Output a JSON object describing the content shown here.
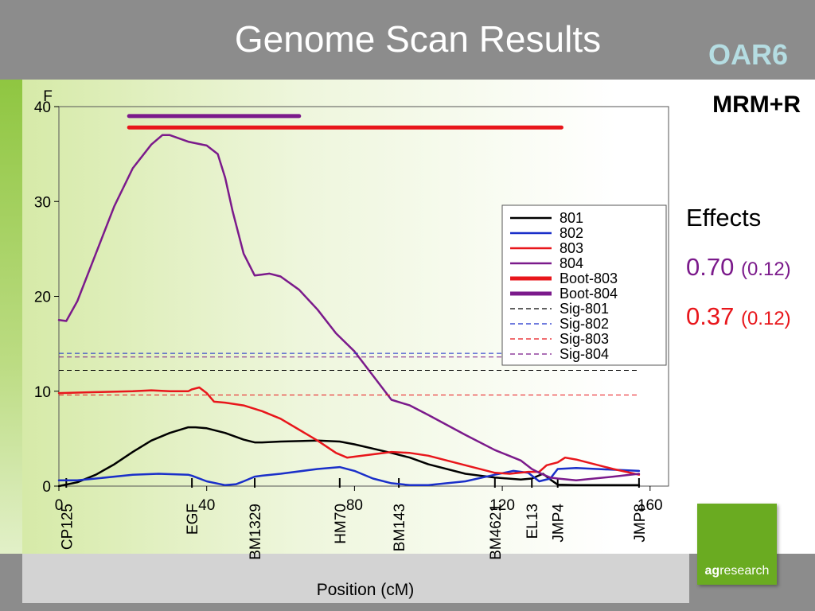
{
  "header": {
    "title": "Genome Scan Results",
    "chromosome": "OAR6"
  },
  "model_label": "MRM+R",
  "effects": {
    "title": "Effects",
    "items": [
      {
        "value": "0.70",
        "se": "(0.12)",
        "color": "#7b1a8b"
      },
      {
        "value": "0.37",
        "se": "(0.12)",
        "color": "#e8161b"
      }
    ]
  },
  "logo": {
    "bold": "ag",
    "rest": "research"
  },
  "chart_data": {
    "type": "line",
    "ylabel": "F",
    "xlabel": "Position (cM)",
    "xlim": [
      0,
      165
    ],
    "ylim": [
      0,
      40
    ],
    "xticks": [
      0,
      40,
      80,
      120,
      160
    ],
    "yticks": [
      0,
      10,
      20,
      30,
      40
    ],
    "grid": false,
    "legend_position": "right",
    "markers": [
      {
        "label": "CP125",
        "x": 2
      },
      {
        "label": "EGF",
        "x": 36
      },
      {
        "label": "BM1329",
        "x": 53
      },
      {
        "label": "HM70",
        "x": 76
      },
      {
        "label": "BM143",
        "x": 92
      },
      {
        "label": "BM4621",
        "x": 118
      },
      {
        "label": "EL13",
        "x": 128
      },
      {
        "label": "JMP4",
        "x": 135
      },
      {
        "label": "JMP8",
        "x": 157
      }
    ],
    "series": [
      {
        "name": "801",
        "color": "#000000",
        "style": "solid",
        "width": 2.5,
        "x": [
          0,
          5,
          10,
          15,
          20,
          25,
          30,
          35,
          37,
          40,
          45,
          50,
          53,
          55,
          60,
          70,
          76,
          80,
          90,
          95,
          100,
          110,
          118,
          125,
          128,
          131,
          133,
          135,
          140,
          150,
          157
        ],
        "y": [
          0,
          0.4,
          1.2,
          2.3,
          3.6,
          4.8,
          5.6,
          6.2,
          6.2,
          6.1,
          5.6,
          4.9,
          4.6,
          4.6,
          4.7,
          4.8,
          4.7,
          4.4,
          3.5,
          3.0,
          2.3,
          1.3,
          0.9,
          0.7,
          0.8,
          1.3,
          0.7,
          0.15,
          0.1,
          0.1,
          0.1
        ]
      },
      {
        "name": "802",
        "color": "#1a2fc9",
        "style": "solid",
        "width": 2.5,
        "x": [
          0,
          5,
          10,
          20,
          27,
          35,
          36,
          40,
          45,
          48,
          50,
          53,
          55,
          60,
          70,
          76,
          80,
          85,
          90,
          95,
          100,
          110,
          118,
          123,
          127,
          130,
          133,
          135,
          140,
          157
        ],
        "y": [
          0.6,
          0.6,
          0.8,
          1.2,
          1.3,
          1.2,
          1.1,
          0.5,
          0.1,
          0.2,
          0.5,
          1.0,
          1.1,
          1.3,
          1.8,
          2.0,
          1.6,
          0.8,
          0.3,
          0.1,
          0.1,
          0.5,
          1.2,
          1.6,
          1.4,
          0.5,
          0.8,
          1.8,
          1.9,
          1.6
        ]
      },
      {
        "name": "803",
        "color": "#e8161b",
        "style": "solid",
        "width": 2.5,
        "x": [
          0,
          10,
          20,
          25,
          30,
          35,
          36,
          38,
          40,
          42,
          45,
          50,
          55,
          60,
          70,
          75,
          78,
          80,
          90,
          95,
          100,
          110,
          118,
          122,
          127,
          130,
          132,
          135,
          137,
          140,
          150,
          157
        ],
        "y": [
          9.8,
          9.9,
          10.0,
          10.1,
          10.0,
          10.0,
          10.2,
          10.4,
          9.8,
          8.9,
          8.8,
          8.5,
          7.9,
          7.1,
          4.8,
          3.5,
          3.0,
          3.1,
          3.6,
          3.5,
          3.2,
          2.2,
          1.4,
          1.3,
          1.5,
          1.5,
          2.2,
          2.5,
          3.0,
          2.8,
          1.8,
          1.2
        ]
      },
      {
        "name": "804",
        "color": "#7b1a8b",
        "style": "solid",
        "width": 2.5,
        "x": [
          0,
          2,
          5,
          10,
          15,
          20,
          25,
          28,
          30,
          35,
          40,
          43,
          45,
          47,
          50,
          53,
          55,
          57,
          60,
          65,
          70,
          75,
          80,
          90,
          95,
          100,
          110,
          118,
          125,
          128,
          130,
          133,
          135,
          140,
          150,
          157
        ],
        "y": [
          17.5,
          17.4,
          19.5,
          24.5,
          29.5,
          33.5,
          36.0,
          37.0,
          37.0,
          36.3,
          35.9,
          35.0,
          32.5,
          29.0,
          24.5,
          22.2,
          22.3,
          22.4,
          22.1,
          20.7,
          18.6,
          16.1,
          14.2,
          9.1,
          8.5,
          7.5,
          5.4,
          3.8,
          2.7,
          1.8,
          1.4,
          0.9,
          0.8,
          0.6,
          1.0,
          1.3
        ]
      },
      {
        "name": "Boot-803",
        "color": "#e8161b",
        "style": "bar",
        "width": 5,
        "x": [
          19,
          136
        ],
        "y": [
          37.8,
          37.8
        ]
      },
      {
        "name": "Boot-804",
        "color": "#7b1a8b",
        "style": "bar",
        "width": 5,
        "x": [
          19,
          65
        ],
        "y": [
          39.0,
          39.0
        ]
      },
      {
        "name": "Sig-801",
        "color": "#000000",
        "style": "dashed",
        "width": 1,
        "x": [
          0,
          157
        ],
        "y": [
          12.2,
          12.2
        ]
      },
      {
        "name": "Sig-802",
        "color": "#1a2fc9",
        "style": "dashed",
        "width": 1,
        "x": [
          0,
          157
        ],
        "y": [
          14.0,
          14.0
        ]
      },
      {
        "name": "Sig-803",
        "color": "#e8161b",
        "style": "dashed",
        "width": 1,
        "x": [
          0,
          157
        ],
        "y": [
          9.6,
          9.6
        ]
      },
      {
        "name": "Sig-804",
        "color": "#7b1a8b",
        "style": "dashed",
        "width": 1,
        "x": [
          0,
          157
        ],
        "y": [
          13.6,
          13.6
        ]
      }
    ]
  }
}
